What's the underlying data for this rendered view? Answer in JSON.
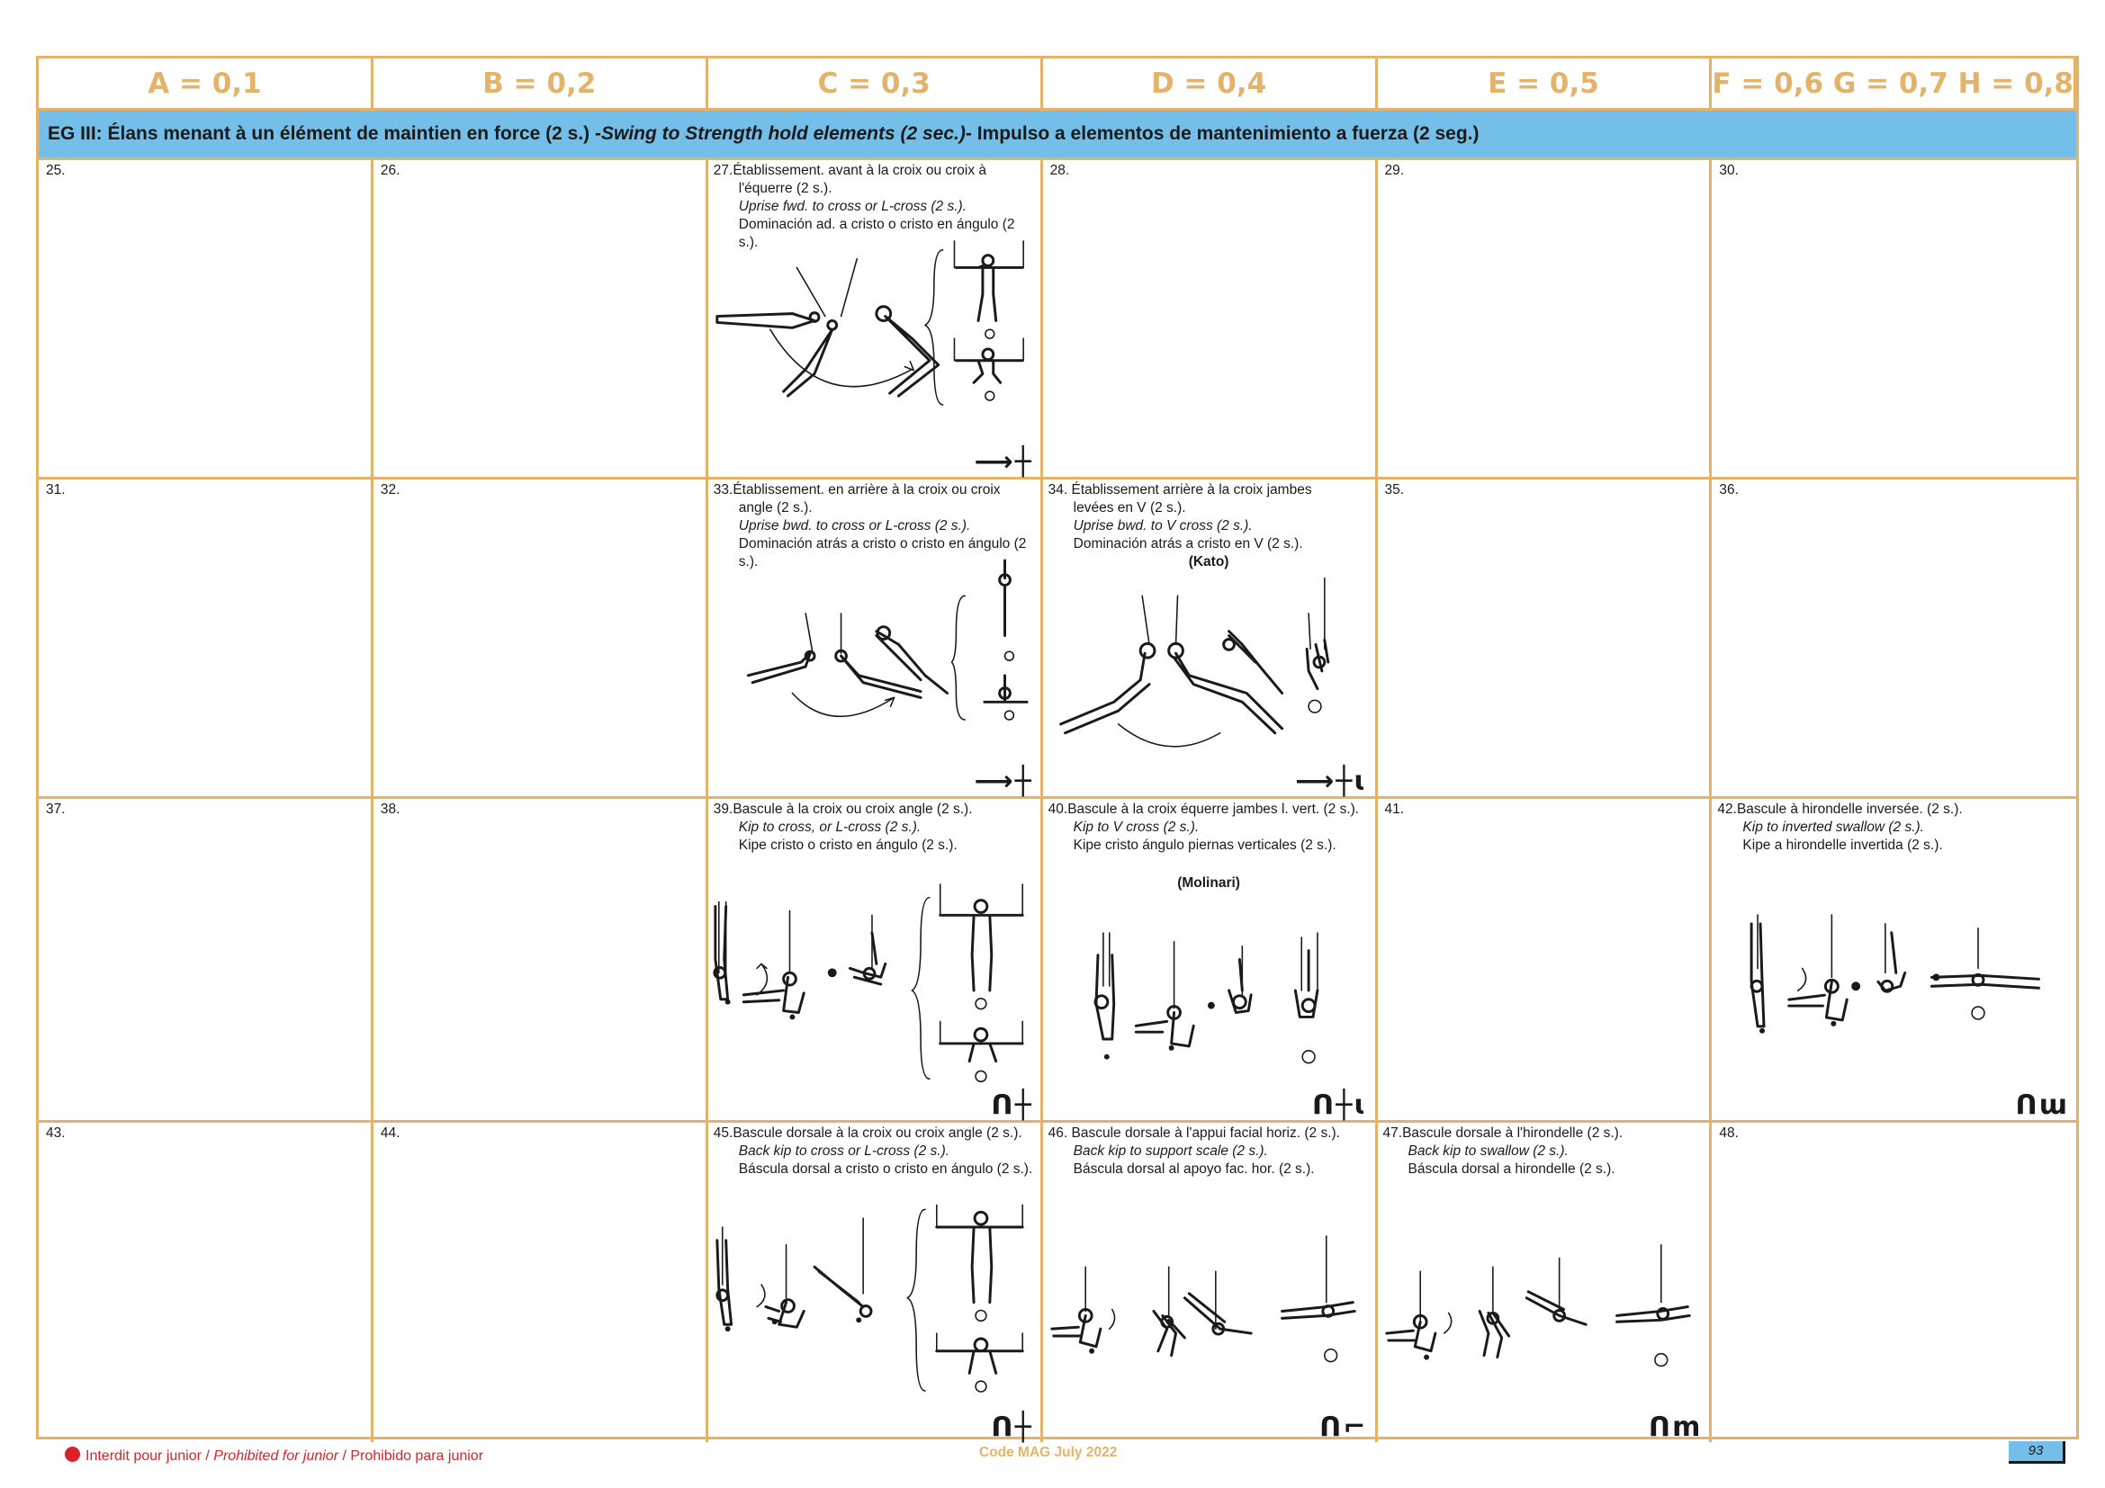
{
  "header": {
    "a": "A = 0,1",
    "b": "B = 0,2",
    "c": "C = 0,3",
    "d": "D = 0,4",
    "e": "E = 0,5",
    "fgh": "F = 0,6 G = 0,7 H = 0,8"
  },
  "group": {
    "fr": "EG III:  Élans menant à un élément de maintien en force (2 s.) - ",
    "en": "Swing to Strength hold elements (2 sec.)",
    "es": " - Impulso a elementos de mantenimiento a fuerza (2 seg.)"
  },
  "rows": [
    {
      "cells": [
        {
          "num": "25."
        },
        {
          "num": "26."
        },
        {
          "num": "27.",
          "fr1": "Établissement. avant à la croix ou croix à",
          "fr2": "l'équerre (2 s.).",
          "en": "Uprise fwd. to cross or L-cross (2 s.).",
          "es": "Dominación ad. a cristo o cristo en ángulo (2 s.).",
          "symbol": "⟶┼"
        },
        {
          "num": "28."
        },
        {
          "num": "29."
        },
        {
          "num": "30."
        }
      ]
    },
    {
      "cells": [
        {
          "num": "31."
        },
        {
          "num": "32."
        },
        {
          "num": "33.",
          "fr1": "Établissement. en arrière à la croix ou croix",
          "fr2": "angle (2 s.).",
          "en": "Uprise bwd. to cross or L-cross (2 s.).",
          "es": "Dominación atrás a cristo o cristo en ángulo (2 s.).",
          "symbol": "⟶┼"
        },
        {
          "num": "34.",
          "fr1": "Établissement arrière à la croix jambes",
          "fr2": "levées en V (2 s.).",
          "en": "Uprise bwd. to V cross (2 s.).",
          "es": "Dominación atrás a cristo en V (2 s.).",
          "nick": "(Kato)",
          "symbol": "⟶┼ɩ"
        },
        {
          "num": "35."
        },
        {
          "num": "36."
        }
      ]
    },
    {
      "cells": [
        {
          "num": "37."
        },
        {
          "num": "38."
        },
        {
          "num": "39.",
          "fr1": "Bascule à la croix ou croix angle (2 s.).",
          "en": "Kip to cross, or L-cross (2 s.).",
          "es": "Kipe cristo o cristo en ángulo (2 s.).",
          "symbol": "ꓵ┼"
        },
        {
          "num": "40.",
          "fr1": "Bascule à la croix équerre jambes l. vert. (2 s.).",
          "en": "Kip to V cross (2 s.).",
          "es": "Kipe cristo ángulo piernas verticales (2 s.).",
          "nick": "(Molinari)",
          "symbol": "ꓵ┼ɩ"
        },
        {
          "num": "41."
        },
        {
          "num": "42.",
          "fr1": "Bascule à hirondelle inversée. (2 s.).",
          "en": "Kip to inverted swallow (2 s.).",
          "es": "Kipe a hirondelle invertida (2 s.).",
          "symbol": "ꓵɯ"
        }
      ]
    },
    {
      "cells": [
        {
          "num": "43."
        },
        {
          "num": "44."
        },
        {
          "num": "45.",
          "fr1": "Bascule dorsale à la croix ou croix angle (2 s.).",
          "en": "Back kip to cross or L-cross (2 s.).",
          "es": "Báscula dorsal a cristo o cristo en ángulo (2 s.).",
          "symbol": "ꓵ┼"
        },
        {
          "num": "46.",
          "fr1": "Bascule dorsale à l'appui facial horiz. (2 s.).",
          "en": "Back kip to support scale (2 s.).",
          "es": "Báscula dorsal al apoyo fac. hor. (2 s.).",
          "symbol": "ꓵ⌐"
        },
        {
          "num": "47.",
          "fr1": "Bascule dorsale à l'hirondelle (2 s.).",
          "en": "Back kip to swallow (2 s.).",
          "es": "Báscula dorsal a hirondelle (2 s.).",
          "symbol": "ꓵm"
        },
        {
          "num": "48."
        }
      ]
    }
  ],
  "footer": {
    "fr": "Interdit pour junior / ",
    "en": "Prohibited for junior",
    "es": " / Prohibido para junior",
    "doc": "Code MAG July 2022",
    "page": "93"
  }
}
